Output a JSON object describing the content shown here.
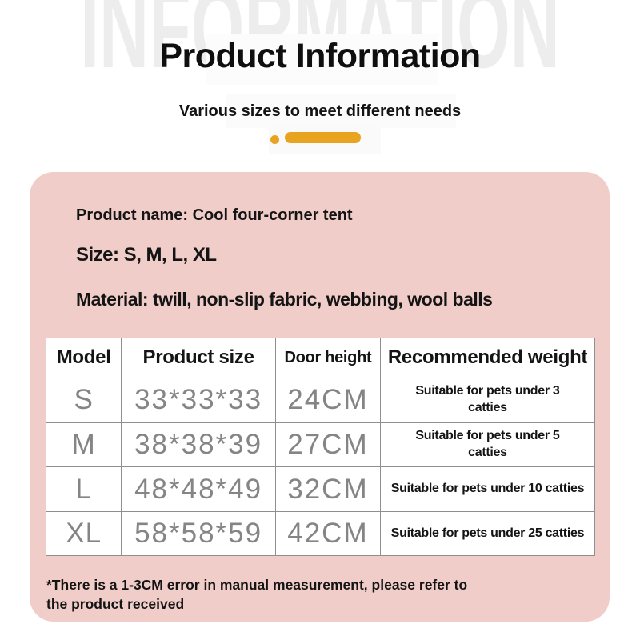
{
  "page": {
    "watermark": "INFORMATION",
    "title": "Product Information",
    "subtitle": "Various sizes to meet different needs"
  },
  "colors": {
    "accent_orange": "#e8a320",
    "card_pink": "#f1cdc9",
    "table_border_gray": "#8f8f8f",
    "data_text_gray": "#858585"
  },
  "card": {
    "product_name_line": "Product name: Cool four-corner tent",
    "size_line": "Size: S, M, L, XL",
    "material_line": "Material: twill, non-slip fabric, webbing, wool balls",
    "footnote": "*There is a 1-3CM error in manual measurement, please refer to the product received"
  },
  "table": {
    "headers": [
      "Model",
      "Product size",
      "Door height",
      "Recommended weight"
    ],
    "rows": [
      {
        "model": "S",
        "product_size": "33*33*33",
        "door_height": "24CM",
        "recommended_weight": "Suitable for pets under 3\ncatties"
      },
      {
        "model": "M",
        "product_size": "38*38*39",
        "door_height": "27CM",
        "recommended_weight": "Suitable for pets under 5\ncatties"
      },
      {
        "model": "L",
        "product_size": "48*48*49",
        "door_height": "32CM",
        "recommended_weight": "Suitable for pets under 10 catties"
      },
      {
        "model": "XL",
        "product_size": "58*58*59",
        "door_height": "42CM",
        "recommended_weight": "Suitable for pets under 25 catties"
      }
    ]
  }
}
